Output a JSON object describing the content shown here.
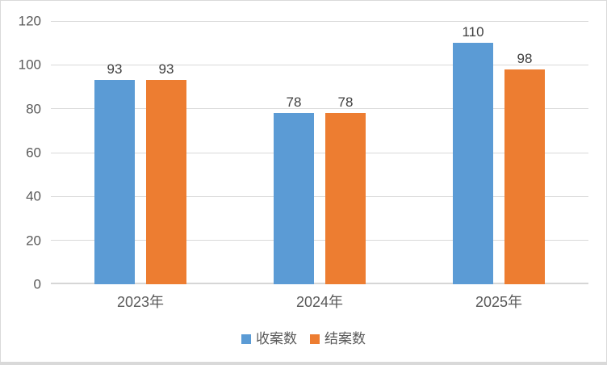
{
  "chart_data": {
    "type": "bar",
    "title": "",
    "xlabel": "",
    "ylabel": "",
    "categories": [
      "2023年",
      "2024年",
      "2025年"
    ],
    "series": [
      {
        "name": "收案数",
        "color": "#5B9BD5",
        "values": [
          93,
          78,
          110
        ]
      },
      {
        "name": "结案数",
        "color": "#ED7D31",
        "values": [
          93,
          78,
          98
        ]
      }
    ],
    "ylim": [
      0,
      120
    ],
    "yticks": [
      0,
      20,
      40,
      60,
      80,
      100,
      120
    ],
    "grid": true,
    "data_labels": true,
    "legend_position": "bottom"
  },
  "style": {
    "gridline_color": "#D9D9D9",
    "baseline_color": "#D6D6D6",
    "frame_border_color": "#D9D9D9",
    "tick_label_color": "#595959",
    "data_label_color": "#404040",
    "legend_label_color": "#595959",
    "background": "#FFFFFF"
  }
}
